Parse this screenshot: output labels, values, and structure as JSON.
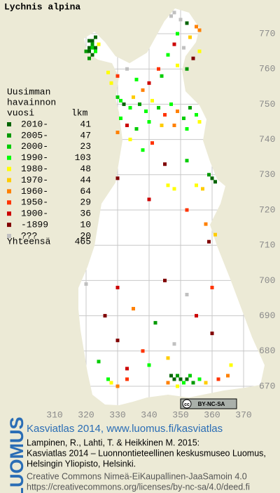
{
  "title": "Lychnis alpina",
  "legend": {
    "header": [
      "Uusimman",
      "havainnon",
      "vuosi"
    ],
    "count_header": "lkm",
    "entries": [
      {
        "label": "2010-",
        "count": 41,
        "color": "#006400"
      },
      {
        "label": "2005-",
        "count": 47,
        "color": "#009900"
      },
      {
        "label": "2000-",
        "count": 23,
        "color": "#00cc00"
      },
      {
        "label": "1990-",
        "count": 103,
        "color": "#00ff00"
      },
      {
        "label": "1980-",
        "count": 48,
        "color": "#ffff00"
      },
      {
        "label": "1970-",
        "count": 44,
        "color": "#ffcc00"
      },
      {
        "label": "1960-",
        "count": 64,
        "color": "#ff8000"
      },
      {
        "label": "1950-",
        "count": 29,
        "color": "#ff3300"
      },
      {
        "label": "1900-",
        "count": 36,
        "color": "#cc0000"
      },
      {
        "label": "-1899",
        "count": 10,
        "color": "#800000"
      },
      {
        "label": "???",
        "count": 20,
        "color": "#c0c0c0"
      }
    ],
    "total_label": "Yhteensä",
    "total": 465
  },
  "grid": {
    "x_labels": [
      310,
      320,
      330,
      340,
      350,
      360,
      370
    ],
    "y_labels": [
      670,
      680,
      690,
      700,
      710,
      720,
      730,
      740,
      750,
      760,
      770
    ]
  },
  "squares": [
    [
      321,
      768,
      0
    ],
    [
      322,
      768,
      0
    ],
    [
      322,
      767,
      1
    ],
    [
      321,
      766,
      0
    ],
    [
      322,
      766,
      2
    ],
    [
      323,
      766,
      0
    ],
    [
      320,
      765,
      1
    ],
    [
      321,
      765,
      0
    ],
    [
      323,
      765,
      3
    ],
    [
      322,
      764,
      0
    ],
    [
      321,
      763,
      1
    ],
    [
      323,
      769,
      0
    ],
    [
      324,
      767,
      4
    ],
    [
      347,
      775,
      10
    ],
    [
      348,
      776,
      10
    ],
    [
      350,
      774,
      10
    ],
    [
      352,
      773,
      0
    ],
    [
      355,
      772,
      6
    ],
    [
      356,
      771,
      6
    ],
    [
      349,
      770,
      3
    ],
    [
      353,
      769,
      5
    ],
    [
      348,
      767,
      8
    ],
    [
      351,
      766,
      10
    ],
    [
      356,
      765,
      4
    ],
    [
      346,
      764,
      3
    ],
    [
      354,
      763,
      9
    ],
    [
      349,
      761,
      4
    ],
    [
      343,
      760,
      7
    ],
    [
      352,
      760,
      1
    ],
    [
      327,
      759,
      4
    ],
    [
      330,
      758,
      7
    ],
    [
      333,
      760,
      10
    ],
    [
      336,
      757,
      3
    ],
    [
      340,
      756,
      8
    ],
    [
      344,
      758,
      2
    ],
    [
      338,
      754,
      6
    ],
    [
      328,
      756,
      4
    ],
    [
      330,
      752,
      2
    ],
    [
      331,
      751,
      3
    ],
    [
      332,
      750,
      0
    ],
    [
      334,
      749,
      3
    ],
    [
      335,
      752,
      5
    ],
    [
      337,
      750,
      1
    ],
    [
      339,
      748,
      3
    ],
    [
      341,
      751,
      4
    ],
    [
      343,
      749,
      2
    ],
    [
      345,
      747,
      7
    ],
    [
      347,
      750,
      3
    ],
    [
      349,
      748,
      6
    ],
    [
      351,
      746,
      2
    ],
    [
      353,
      749,
      1
    ],
    [
      355,
      747,
      3
    ],
    [
      356,
      745,
      4
    ],
    [
      331,
      746,
      3
    ],
    [
      333,
      744,
      8
    ],
    [
      336,
      743,
      2
    ],
    [
      340,
      745,
      3
    ],
    [
      344,
      744,
      5
    ],
    [
      348,
      744,
      6
    ],
    [
      352,
      743,
      3
    ],
    [
      330,
      742,
      6
    ],
    [
      334,
      740,
      4
    ],
    [
      341,
      739,
      7
    ],
    [
      338,
      737,
      3
    ],
    [
      345,
      733,
      9
    ],
    [
      352,
      734,
      2
    ],
    [
      359,
      730,
      1
    ],
    [
      360,
      729,
      0
    ],
    [
      361,
      728,
      0
    ],
    [
      346,
      727,
      4
    ],
    [
      348,
      726,
      4
    ],
    [
      355,
      727,
      4
    ],
    [
      357,
      726,
      5
    ],
    [
      330,
      729,
      9
    ],
    [
      340,
      723,
      8
    ],
    [
      352,
      720,
      7
    ],
    [
      358,
      716,
      6
    ],
    [
      361,
      713,
      5
    ],
    [
      359,
      711,
      9
    ],
    [
      330,
      698,
      8
    ],
    [
      320,
      699,
      10
    ],
    [
      345,
      700,
      9
    ],
    [
      352,
      696,
      10
    ],
    [
      360,
      698,
      7
    ],
    [
      335,
      692,
      6
    ],
    [
      326,
      690,
      9
    ],
    [
      342,
      688,
      1
    ],
    [
      355,
      690,
      8
    ],
    [
      330,
      683,
      9
    ],
    [
      338,
      680,
      7
    ],
    [
      348,
      682,
      10
    ],
    [
      360,
      685,
      9
    ],
    [
      324,
      677,
      2
    ],
    [
      333,
      675,
      8
    ],
    [
      340,
      676,
      3
    ],
    [
      346,
      678,
      5
    ],
    [
      347,
      673,
      0
    ],
    [
      348,
      672,
      0
    ],
    [
      349,
      673,
      1
    ],
    [
      350,
      672,
      0
    ],
    [
      351,
      671,
      3
    ],
    [
      352,
      672,
      0
    ],
    [
      353,
      673,
      2
    ],
    [
      354,
      671,
      1
    ],
    [
      349,
      670,
      4
    ],
    [
      346,
      671,
      6
    ],
    [
      356,
      672,
      3
    ],
    [
      358,
      671,
      5
    ],
    [
      362,
      672,
      7
    ],
    [
      365,
      673,
      6
    ],
    [
      327,
      672,
      3
    ],
    [
      328,
      671,
      4
    ],
    [
      330,
      670,
      6
    ],
    [
      333,
      672,
      7
    ],
    [
      366,
      676,
      4
    ]
  ],
  "badge": {
    "cc": "cc",
    "terms": "BY-NC-SA"
  },
  "footer": {
    "logo": "LUOMUS",
    "headline": "Kasviatlas 2014, www.luomus.fi/kasviatlas",
    "citation": [
      "Lampinen, R., Lahti, T. & Heikkinen M. 2015:",
      "Kasviatlas 2014 – Luonnontieteellinen keskusmuseo Luomus,",
      "Helsingin Yliopisto, Helsinki."
    ],
    "license": [
      "Creative Commons Nimeä-EiKaupallinen-JaaSamoin 4.0",
      "https://creativecommons.org/licenses/by-nc-sa/4.0/deed.fi"
    ]
  }
}
